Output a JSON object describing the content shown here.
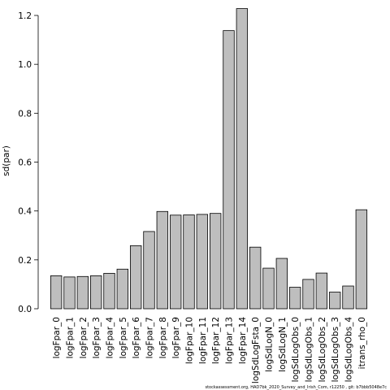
{
  "chart_data": {
    "type": "bar",
    "title": "",
    "xlabel": "",
    "ylabel": "sd(par)",
    "ylim": [
      0,
      1.2
    ],
    "yticks": [
      0.0,
      0.2,
      0.4,
      0.6,
      0.8,
      1.0,
      1.2
    ],
    "ytick_labels": [
      "0.0",
      "0.2",
      "0.4",
      "0.6",
      "0.8",
      "1.0",
      "1.2"
    ],
    "grid": false,
    "bar_color": "#bebebe",
    "categories": [
      "logFpar_0",
      "logFpar_1",
      "logFpar_2",
      "logFpar_3",
      "logFpar_4",
      "logFpar_5",
      "logFpar_6",
      "logFpar_7",
      "logFpar_8",
      "logFpar_9",
      "logFpar_10",
      "logFpar_11",
      "logFpar_12",
      "logFpar_13",
      "logFpar_14",
      "logSdLogFsta_0",
      "logSdLogN_0",
      "logSdLogN_1",
      "logSdLogObs_0",
      "logSdLogObs_1",
      "logSdLogObs_2",
      "logSdLogObs_3",
      "logSdLogObs_4",
      "itrans_rho_0"
    ],
    "values": [
      0.135,
      0.13,
      0.132,
      0.135,
      0.145,
      0.162,
      0.258,
      0.316,
      0.398,
      0.383,
      0.384,
      0.386,
      0.39,
      1.138,
      1.228,
      0.252,
      0.166,
      0.206,
      0.088,
      0.12,
      0.146,
      0.068,
      0.093,
      0.405
    ]
  },
  "footer": "stockassessment.org, HAD7bk_2020_Survey_and_Irish_Com, r12250 , git: b7bbb5048e7c"
}
